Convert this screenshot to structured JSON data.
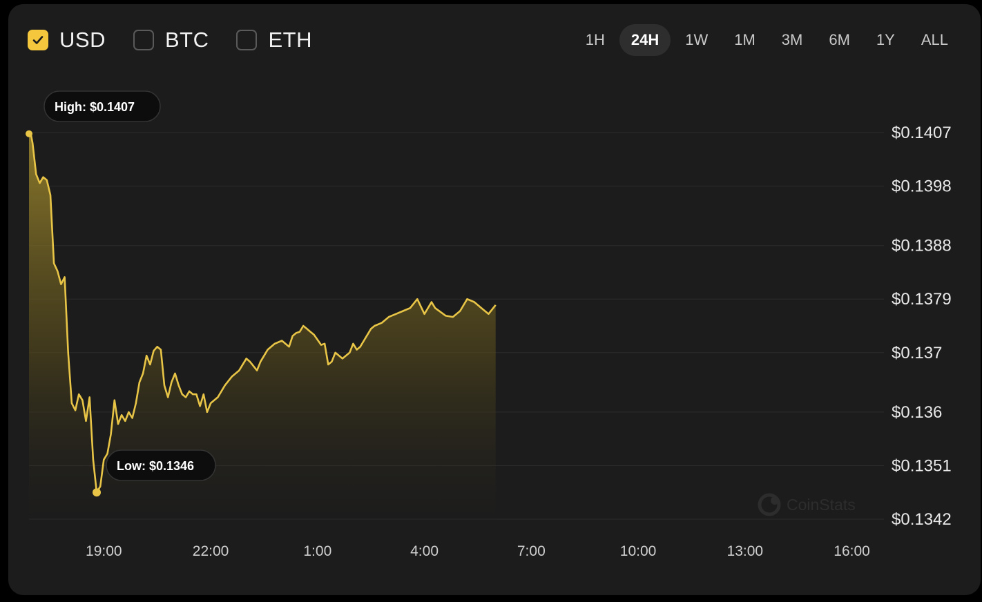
{
  "currencies": [
    {
      "label": "USD",
      "checked": true
    },
    {
      "label": "BTC",
      "checked": false
    },
    {
      "label": "ETH",
      "checked": false
    }
  ],
  "ranges": [
    "1H",
    "24H",
    "1W",
    "1M",
    "3M",
    "6M",
    "1Y",
    "ALL"
  ],
  "active_range": "24H",
  "watermark": "CoinStats",
  "colors": {
    "accent": "#f4c73c",
    "background": "#1c1c1c",
    "line": "#e8c547"
  },
  "chart_data": {
    "type": "area",
    "title": "",
    "xlabel": "",
    "ylabel": "",
    "grid": true,
    "x_ticks": [
      "19:00",
      "22:00",
      "1:00",
      "4:00",
      "7:00",
      "10:00",
      "13:00",
      "16:00"
    ],
    "y_ticks": [
      "$0.1407",
      "$0.1398",
      "$0.1388",
      "$0.1379",
      "$0.137",
      "$0.136",
      "$0.1351",
      "$0.1342"
    ],
    "y_tick_values": [
      0.1407,
      0.1398,
      0.1388,
      0.1379,
      0.137,
      0.136,
      0.1351,
      0.1342
    ],
    "ylim": [
      0.1342,
      0.1407
    ],
    "x_range_hours": [
      16.9,
      40.9
    ],
    "series": [
      {
        "values": [
          [
            16.9,
            0.14068
          ],
          [
            16.95,
            0.14068
          ],
          [
            17.0,
            0.14052
          ],
          [
            17.1,
            0.14
          ],
          [
            17.2,
            0.13985
          ],
          [
            17.3,
            0.13995
          ],
          [
            17.4,
            0.1399
          ],
          [
            17.5,
            0.13965
          ],
          [
            17.6,
            0.1385
          ],
          [
            17.7,
            0.13837
          ],
          [
            17.8,
            0.13815
          ],
          [
            17.9,
            0.13827
          ],
          [
            18.0,
            0.137
          ],
          [
            18.1,
            0.13615
          ],
          [
            18.2,
            0.13603
          ],
          [
            18.3,
            0.1363
          ],
          [
            18.4,
            0.1362
          ],
          [
            18.5,
            0.13585
          ],
          [
            18.6,
            0.13625
          ],
          [
            18.7,
            0.1352
          ],
          [
            18.8,
            0.13465
          ],
          [
            18.9,
            0.13475
          ],
          [
            19.0,
            0.1352
          ],
          [
            19.1,
            0.1353
          ],
          [
            19.2,
            0.13563
          ],
          [
            19.3,
            0.1362
          ],
          [
            19.4,
            0.1358
          ],
          [
            19.5,
            0.13595
          ],
          [
            19.6,
            0.13585
          ],
          [
            19.7,
            0.136
          ],
          [
            19.8,
            0.1359
          ],
          [
            19.9,
            0.13615
          ],
          [
            20.0,
            0.1365
          ],
          [
            20.1,
            0.13665
          ],
          [
            20.2,
            0.13695
          ],
          [
            20.3,
            0.1368
          ],
          [
            20.4,
            0.13703
          ],
          [
            20.5,
            0.1371
          ],
          [
            20.6,
            0.13705
          ],
          [
            20.7,
            0.13645
          ],
          [
            20.8,
            0.13625
          ],
          [
            20.9,
            0.1365
          ],
          [
            21.0,
            0.13665
          ],
          [
            21.1,
            0.13645
          ],
          [
            21.2,
            0.1363
          ],
          [
            21.3,
            0.13625
          ],
          [
            21.4,
            0.13635
          ],
          [
            21.5,
            0.1363
          ],
          [
            21.6,
            0.1363
          ],
          [
            21.7,
            0.1361
          ],
          [
            21.8,
            0.1363
          ],
          [
            21.9,
            0.136
          ],
          [
            22.0,
            0.13615
          ],
          [
            22.2,
            0.13625
          ],
          [
            22.4,
            0.13645
          ],
          [
            22.6,
            0.1366
          ],
          [
            22.8,
            0.1367
          ],
          [
            23.0,
            0.1369
          ],
          [
            23.1,
            0.13685
          ],
          [
            23.3,
            0.1367
          ],
          [
            23.4,
            0.13685
          ],
          [
            23.5,
            0.13695
          ],
          [
            23.6,
            0.13705
          ],
          [
            23.8,
            0.13715
          ],
          [
            24.0,
            0.1372
          ],
          [
            24.2,
            0.1371
          ],
          [
            24.3,
            0.13728
          ],
          [
            24.4,
            0.13733
          ],
          [
            24.5,
            0.13735
          ],
          [
            24.6,
            0.13745
          ],
          [
            24.7,
            0.1374
          ],
          [
            24.8,
            0.13735
          ],
          [
            24.9,
            0.1373
          ],
          [
            25.1,
            0.13713
          ],
          [
            25.2,
            0.13715
          ],
          [
            25.3,
            0.1368
          ],
          [
            25.4,
            0.13685
          ],
          [
            25.5,
            0.137
          ],
          [
            25.7,
            0.1369
          ],
          [
            25.9,
            0.137
          ],
          [
            26.0,
            0.13715
          ],
          [
            26.1,
            0.13705
          ],
          [
            26.2,
            0.1371
          ],
          [
            26.3,
            0.1372
          ],
          [
            26.4,
            0.1373
          ],
          [
            26.5,
            0.1374
          ],
          [
            26.6,
            0.13745
          ],
          [
            26.8,
            0.1375
          ],
          [
            27.0,
            0.1376
          ],
          [
            27.2,
            0.13765
          ],
          [
            27.4,
            0.1377
          ],
          [
            27.6,
            0.13775
          ],
          [
            27.8,
            0.1379
          ],
          [
            28.0,
            0.13765
          ],
          [
            28.2,
            0.13785
          ],
          [
            28.3,
            0.13775
          ],
          [
            28.6,
            0.13762
          ],
          [
            28.8,
            0.1376
          ],
          [
            29.0,
            0.1377
          ],
          [
            29.2,
            0.1379
          ],
          [
            29.4,
            0.13785
          ],
          [
            29.6,
            0.13775
          ],
          [
            29.8,
            0.13765
          ],
          [
            30.0,
            0.1378
          ]
        ]
      }
    ],
    "annotations": [
      {
        "label": "High: $0.1407"
      },
      {
        "label": "Low: $0.1346"
      }
    ]
  }
}
